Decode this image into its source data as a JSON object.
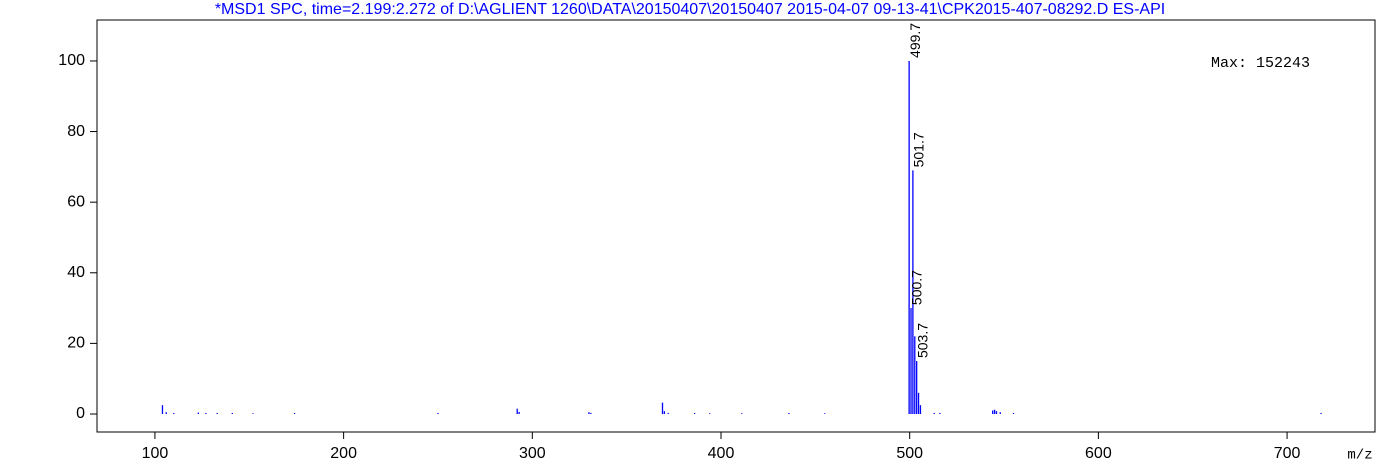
{
  "chart_data": {
    "type": "bar",
    "title": "*MSD1 SPC, time=2.199:2.272 of D:\\AGLIENT 1260\\DATA\\20150407\\20150407 2015-04-07 09-13-41\\CPK2015-407-08292.D    ES-API",
    "annotation": "Max: 152243",
    "x_label": "m/z",
    "x": [
      104,
      106,
      110,
      123,
      127,
      133,
      141,
      152,
      174,
      250,
      292,
      293,
      330,
      331,
      369,
      370,
      372,
      386,
      394,
      411,
      436,
      455,
      499.7,
      500.7,
      501.7,
      502.7,
      503.7,
      504.7,
      505.7,
      513,
      516,
      544,
      545,
      546,
      548,
      555,
      718
    ],
    "values": [
      2.5,
      0.5,
      0.3,
      0.4,
      0.3,
      0.3,
      0.3,
      0.2,
      0.3,
      0.3,
      1.5,
      0.6,
      0.5,
      0.3,
      3.2,
      0.8,
      0.3,
      0.3,
      0.2,
      0.2,
      0.3,
      0.2,
      100,
      30,
      69,
      22,
      15,
      6,
      2.5,
      0.3,
      0.3,
      1,
      1.2,
      0.8,
      0.5,
      0.3,
      0.3
    ],
    "peak_labels": [
      499.7,
      501.7,
      500.7,
      503.7
    ],
    "color": "#0000ff",
    "xlim": [
      69.3,
      746.6
    ],
    "ylim": [
      -5.1,
      111.6
    ],
    "xticks": [
      100,
      200,
      300,
      400,
      500,
      600,
      700
    ],
    "yticks": [
      0,
      20,
      40,
      60,
      80,
      100
    ]
  }
}
